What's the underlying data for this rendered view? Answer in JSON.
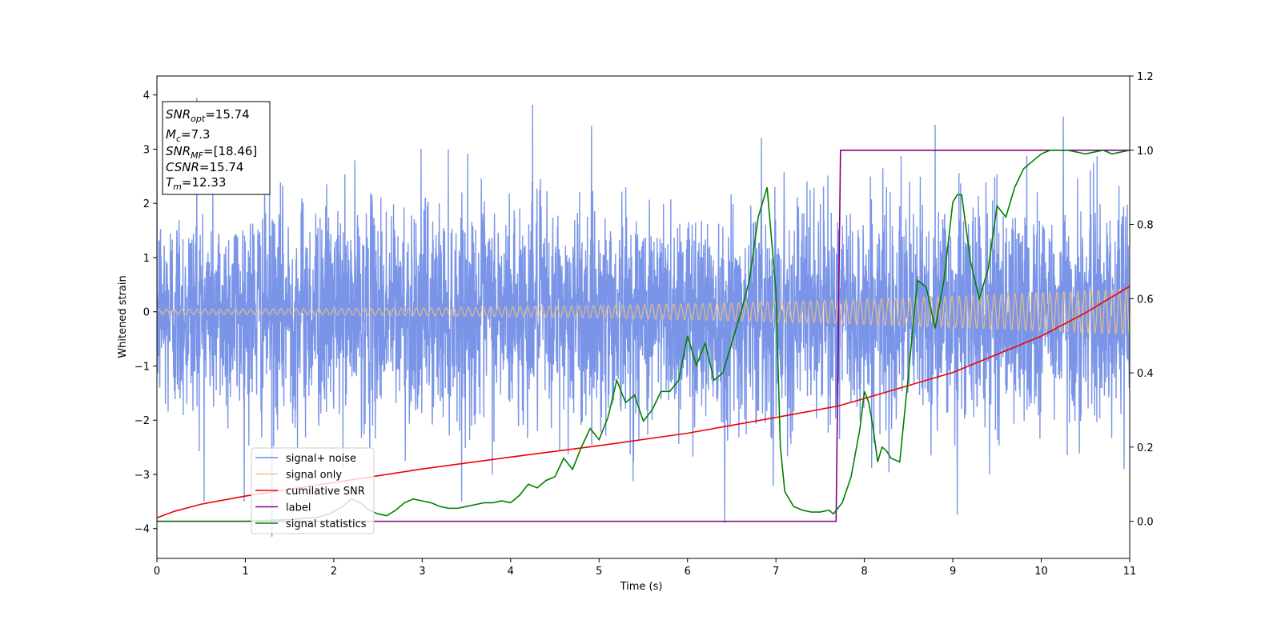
{
  "chart_data": {
    "type": "line",
    "xlabel": "Time (s)",
    "ylabel": "Whitened strain",
    "xlim": [
      0,
      11
    ],
    "ylim": [
      -4.55,
      4.35
    ],
    "y2lim": [
      -0.1,
      1.2
    ],
    "xticks": [
      "0",
      "1",
      "2",
      "3",
      "4",
      "5",
      "6",
      "7",
      "8",
      "9",
      "10",
      "11"
    ],
    "yticks": [
      "4",
      "3",
      "2",
      "1",
      "0",
      "−1",
      "−2",
      "−3",
      "−4"
    ],
    "y2ticks": [
      "0.0",
      "0.2",
      "0.4",
      "0.6",
      "0.8",
      "1.0",
      "1.2"
    ],
    "grid": false,
    "legend_position": "lower-left",
    "info_box": {
      "snr_opt": {
        "name": "SNR",
        "sub": "opt",
        "value": "=15.74"
      },
      "mc": {
        "name": "M",
        "sub": "c",
        "value": "=7.3"
      },
      "snr_mf": {
        "name": "SNR",
        "sub": "MF",
        "value": "=[18.46]"
      },
      "csnr": {
        "name": "CSNR",
        "value": "=15.74"
      },
      "tm": {
        "name": "T",
        "sub": "m",
        "value": "=12.33"
      }
    },
    "series": [
      {
        "name": "signal+ noise",
        "color": "#6b8ae6",
        "axis": "left",
        "description": "dense noise band, |y| mostly within 2.5, peaks near 4",
        "noise_std": 1.0,
        "peaks": [
          [
            0.45,
            3.95
          ],
          [
            4.25,
            3.82
          ],
          [
            1.3,
            -4.15
          ],
          [
            6.42,
            -3.9
          ],
          [
            9.05,
            -3.75
          ],
          [
            10.25,
            3.6
          ],
          [
            8.8,
            3.45
          ]
        ]
      },
      {
        "name": "signal only",
        "color": "#f4c27a",
        "axis": "left",
        "description": "chirp oscillation around 0, amplitude grows from ~0.05 to ~0.4",
        "amplitude_start": 0.05,
        "amplitude_end": 0.42
      },
      {
        "name": "cumilative SNR",
        "color": "#ee0000",
        "axis": "left",
        "x": [
          0,
          0.2,
          0.5,
          1,
          2,
          3,
          4,
          5,
          6,
          7,
          7.7,
          8,
          9,
          10,
          10.5,
          11
        ],
        "y": [
          -3.8,
          -3.68,
          -3.55,
          -3.4,
          -3.15,
          -2.9,
          -2.68,
          -2.47,
          -2.24,
          -1.95,
          -1.74,
          -1.6,
          -1.12,
          -0.45,
          -0.02,
          0.47
        ]
      },
      {
        "name": "label",
        "color": "#800080",
        "axis": "right",
        "x": [
          0,
          7.68,
          7.73,
          11
        ],
        "y": [
          0,
          0,
          1,
          1
        ]
      },
      {
        "name": "signal statistics",
        "color": "#008000",
        "axis": "right",
        "x": [
          0,
          1,
          1.5,
          1.8,
          1.95,
          2.1,
          2.2,
          2.3,
          2.4,
          2.5,
          2.6,
          2.7,
          2.8,
          2.9,
          3.0,
          3.1,
          3.2,
          3.3,
          3.4,
          3.5,
          3.6,
          3.7,
          3.8,
          3.9,
          4.0,
          4.1,
          4.2,
          4.3,
          4.4,
          4.5,
          4.6,
          4.7,
          4.8,
          4.9,
          5.0,
          5.1,
          5.2,
          5.3,
          5.4,
          5.5,
          5.6,
          5.7,
          5.8,
          5.9,
          6.0,
          6.1,
          6.2,
          6.3,
          6.4,
          6.5,
          6.6,
          6.7,
          6.8,
          6.9,
          7.0,
          7.05,
          7.1,
          7.2,
          7.3,
          7.4,
          7.5,
          7.6,
          7.65,
          7.75,
          7.85,
          7.95,
          8.0,
          8.05,
          8.1,
          8.15,
          8.2,
          8.25,
          8.3,
          8.4,
          8.5,
          8.6,
          8.7,
          8.8,
          8.9,
          9.0,
          9.05,
          9.1,
          9.2,
          9.3,
          9.4,
          9.5,
          9.6,
          9.7,
          9.8,
          9.9,
          10.0,
          10.1,
          10.2,
          10.3,
          10.5,
          10.7,
          10.8,
          11
        ],
        "y": [
          0,
          0.0,
          0.005,
          0.01,
          0.02,
          0.04,
          0.06,
          0.05,
          0.03,
          0.02,
          0.015,
          0.03,
          0.05,
          0.06,
          0.055,
          0.05,
          0.04,
          0.035,
          0.035,
          0.04,
          0.045,
          0.05,
          0.05,
          0.055,
          0.05,
          0.07,
          0.1,
          0.09,
          0.11,
          0.12,
          0.17,
          0.14,
          0.2,
          0.25,
          0.22,
          0.28,
          0.38,
          0.32,
          0.34,
          0.27,
          0.3,
          0.35,
          0.35,
          0.38,
          0.5,
          0.42,
          0.48,
          0.38,
          0.4,
          0.48,
          0.56,
          0.65,
          0.82,
          0.9,
          0.62,
          0.2,
          0.08,
          0.04,
          0.03,
          0.025,
          0.025,
          0.03,
          0.02,
          0.05,
          0.12,
          0.25,
          0.35,
          0.32,
          0.25,
          0.16,
          0.2,
          0.19,
          0.17,
          0.16,
          0.4,
          0.65,
          0.63,
          0.52,
          0.65,
          0.86,
          0.88,
          0.88,
          0.7,
          0.6,
          0.68,
          0.85,
          0.82,
          0.9,
          0.95,
          0.97,
          0.99,
          1.0,
          1.0,
          1.0,
          0.99,
          1.0,
          0.99,
          1.0
        ]
      }
    ]
  }
}
